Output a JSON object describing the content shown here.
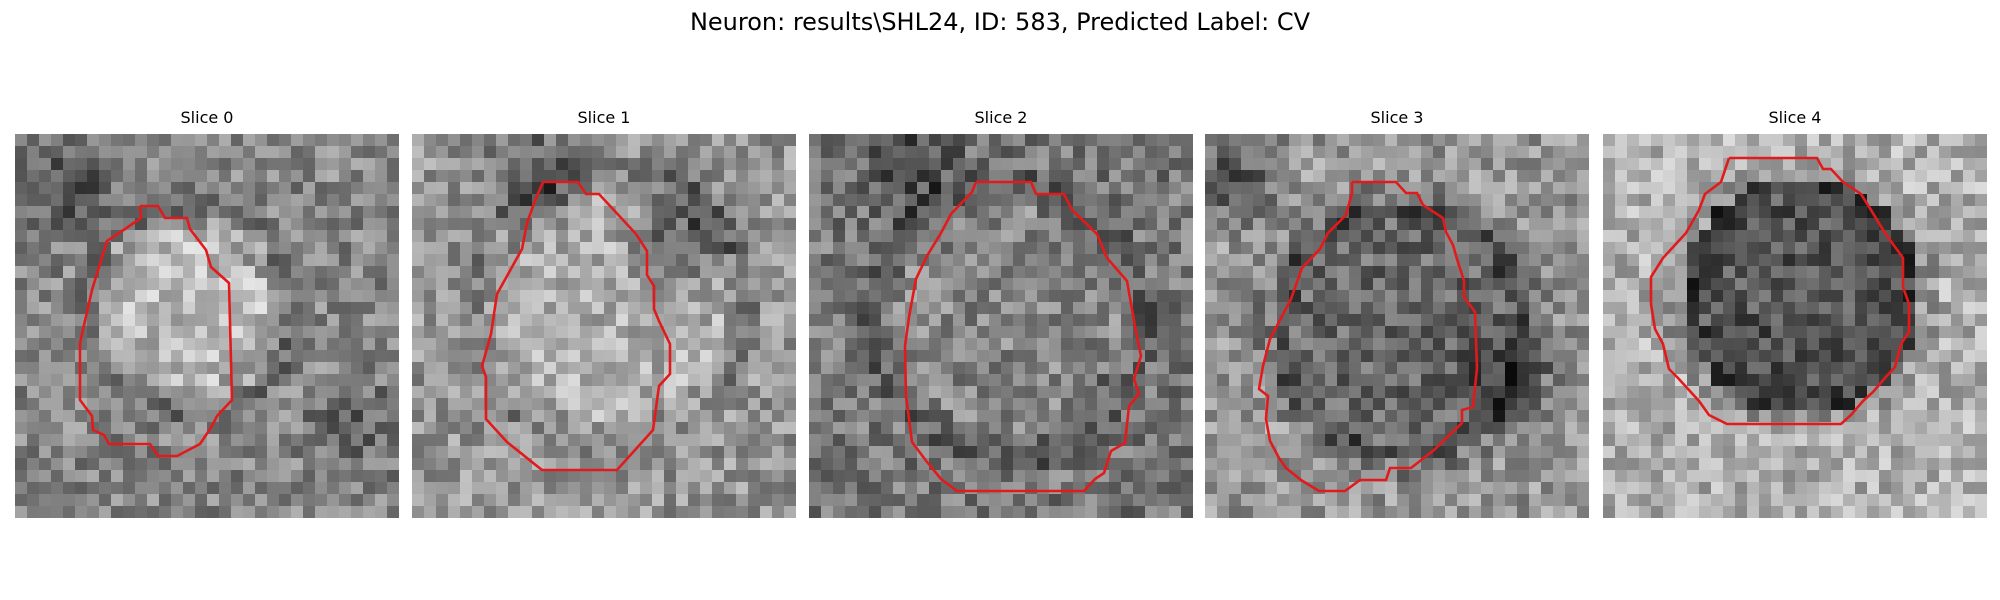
{
  "title": "Neuron: results\\SHL24, ID: 583, Predicted Label: CV",
  "colors": {
    "contour": "#e31a1c",
    "background": "#ffffff"
  },
  "image_grid_size": 32,
  "slices": [
    {
      "label": "Slice 0"
    },
    {
      "label": "Slice 1"
    },
    {
      "label": "Slice 2"
    },
    {
      "label": "Slice 3"
    },
    {
      "label": "Slice 4"
    }
  ]
}
